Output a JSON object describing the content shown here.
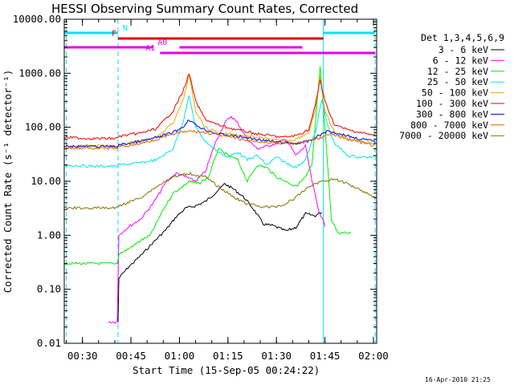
{
  "chart_data": {
    "type": "line",
    "title": "HESSI Observing Summary Count Rates, Corrected",
    "xlabel": "Start Time (15-Sep-05 00:24:22)",
    "ylabel": "Corrected Count Rate (s⁻¹ detector⁻¹)",
    "y_scale": "log",
    "ylim": [
      0.01,
      10000
    ],
    "xlim": [
      "00:24:22",
      "02:01:00"
    ],
    "y_ticks": [
      "10000.00",
      "1000.00",
      "100.00",
      "10.00",
      "1.00",
      "0.10",
      "0.01"
    ],
    "x_ticks": [
      "00:30",
      "00:45",
      "01:00",
      "01:15",
      "01:30",
      "01:45",
      "02:00"
    ],
    "footer_date": "16-Apr-2010 21:25",
    "legend_header": "Det 1,3,4,5,6,9",
    "vertical_markers": [
      {
        "time": "00:41:00",
        "style": "dashed"
      },
      {
        "time": "00:25:00",
        "style": "dashed"
      },
      {
        "time": "01:44:30",
        "style": "solid"
      },
      {
        "time": "02:00:30",
        "style": "dashed"
      }
    ],
    "flag_bars": [
      {
        "label": "N",
        "color": "#00e5ee",
        "segments": [
          [
            "00:24:30",
            "00:41:00"
          ],
          [
            "01:44:30",
            "02:00:30"
          ]
        ]
      },
      {
        "label": "F",
        "color": "#e00000",
        "segments": [
          [
            "00:41:00",
            "01:44:30"
          ]
        ]
      },
      {
        "label": "A0",
        "color": "#e800e8",
        "segments": [
          [
            "00:24:30",
            "00:52:00"
          ],
          [
            "01:00:00",
            "01:38:00"
          ]
        ]
      },
      {
        "label": "A1",
        "color": "#e800e8",
        "segments": [
          [
            "00:54:00",
            "02:00:30"
          ]
        ]
      }
    ],
    "series": [
      {
        "name": "3 - 6 keV",
        "color": "#000000",
        "points": [
          [
            "00:41:00",
            0.025
          ],
          [
            "00:41:15",
            0.16
          ],
          [
            "00:44:00",
            0.25
          ],
          [
            "00:48:00",
            0.42
          ],
          [
            "00:52:00",
            0.75
          ],
          [
            "00:56:00",
            1.3
          ],
          [
            "00:59:00",
            2.2
          ],
          [
            "01:02:00",
            3.2
          ],
          [
            "01:05:00",
            3.5
          ],
          [
            "01:08:00",
            4.2
          ],
          [
            "01:11:00",
            6.0
          ],
          [
            "01:14:00",
            9.0
          ],
          [
            "01:17:00",
            7.0
          ],
          [
            "01:20:00",
            5.0
          ],
          [
            "01:23:00",
            3.0
          ],
          [
            "01:26:00",
            1.6
          ],
          [
            "01:29:00",
            1.5
          ],
          [
            "01:33:00",
            1.2
          ],
          [
            "01:36:00",
            1.4
          ],
          [
            "01:39:00",
            2.5
          ],
          [
            "01:42:00",
            2.3
          ],
          [
            "01:44:00",
            2.7
          ]
        ]
      },
      {
        "name": "6 - 12 keV",
        "color": "#ff00ff",
        "points": [
          [
            "00:38:00",
            0.025
          ],
          [
            "00:40:45",
            0.025
          ],
          [
            "00:41:15",
            1.0
          ],
          [
            "00:44:00",
            1.4
          ],
          [
            "00:48:00",
            2.0
          ],
          [
            "00:52:00",
            4.0
          ],
          [
            "00:56:00",
            10.0
          ],
          [
            "00:59:00",
            14.0
          ],
          [
            "01:02:00",
            12.0
          ],
          [
            "01:05:00",
            10.0
          ],
          [
            "01:08:00",
            15.0
          ],
          [
            "01:11:00",
            50.0
          ],
          [
            "01:14:00",
            120.0
          ],
          [
            "01:16:00",
            160.0
          ],
          [
            "01:18:00",
            120.0
          ],
          [
            "01:21:00",
            60.0
          ],
          [
            "01:24:00",
            40.0
          ],
          [
            "01:27:00",
            45.0
          ],
          [
            "01:30:00",
            50.0
          ],
          [
            "01:33:00",
            60.0
          ],
          [
            "01:36:00",
            30.0
          ],
          [
            "01:39:00",
            45.0
          ],
          [
            "01:41:00",
            10.0
          ],
          [
            "01:43:00",
            3.0
          ],
          [
            "01:45:00",
            1.5
          ]
        ]
      },
      {
        "name": "12 - 25 keV",
        "color": "#00ee00",
        "points": [
          [
            "00:24:22",
            0.3
          ],
          [
            "00:32:00",
            0.3
          ],
          [
            "00:40:45",
            0.3
          ],
          [
            "00:41:15",
            0.45
          ],
          [
            "00:44:00",
            0.55
          ],
          [
            "00:48:00",
            0.8
          ],
          [
            "00:51:00",
            1.0
          ],
          [
            "00:55:00",
            3.0
          ],
          [
            "00:58:00",
            6.0
          ],
          [
            "01:01:00",
            8.0
          ],
          [
            "01:03:00",
            10.0
          ],
          [
            "01:06:00",
            9.0
          ],
          [
            "01:09:00",
            12.0
          ],
          [
            "01:12:00",
            40.0
          ],
          [
            "01:15:00",
            30.0
          ],
          [
            "01:18:00",
            25.0
          ],
          [
            "01:21:00",
            10.0
          ],
          [
            "01:24:00",
            20.0
          ],
          [
            "01:27:00",
            18.0
          ],
          [
            "01:30:00",
            12.0
          ],
          [
            "01:33:00",
            10.0
          ],
          [
            "01:36:00",
            8.0
          ],
          [
            "01:39:00",
            12.0
          ],
          [
            "01:41:00",
            20.0
          ],
          [
            "01:43:30",
            1300.0
          ],
          [
            "01:45:00",
            100.0
          ],
          [
            "01:47:00",
            2.0
          ],
          [
            "01:49:00",
            1.1
          ],
          [
            "01:53:00",
            1.1
          ]
        ]
      },
      {
        "name": "25 - 50 keV",
        "color": "#00e5ee",
        "points": [
          [
            "00:24:22",
            20.0
          ],
          [
            "00:32:00",
            19.0
          ],
          [
            "00:40:45",
            19.0
          ],
          [
            "00:41:15",
            20.0
          ],
          [
            "00:48:00",
            22.0
          ],
          [
            "00:53:00",
            25.0
          ],
          [
            "00:58:00",
            40.0
          ],
          [
            "01:01:00",
            120.0
          ],
          [
            "01:03:00",
            380.0
          ],
          [
            "01:05:00",
            100.0
          ],
          [
            "01:08:00",
            55.0
          ],
          [
            "01:12:00",
            35.0
          ],
          [
            "01:15:00",
            28.0
          ],
          [
            "01:18:00",
            35.0
          ],
          [
            "01:21:00",
            25.0
          ],
          [
            "01:24:00",
            30.0
          ],
          [
            "01:27:00",
            20.0
          ],
          [
            "01:30:00",
            28.0
          ],
          [
            "01:33:00",
            22.0
          ],
          [
            "01:36:00",
            18.0
          ],
          [
            "01:39:00",
            25.0
          ],
          [
            "01:42:00",
            80.0
          ],
          [
            "01:44:00",
            320.0
          ],
          [
            "01:46:00",
            100.0
          ],
          [
            "01:48:00",
            50.0
          ],
          [
            "01:52:00",
            30.0
          ],
          [
            "01:56:00",
            28.0
          ],
          [
            "02:00:30",
            28.0
          ]
        ]
      },
      {
        "name": "50 - 100 keV",
        "color": "#e0b000",
        "points": [
          [
            "00:24:22",
            45.0
          ],
          [
            "00:32:00",
            45.0
          ],
          [
            "00:40:45",
            45.0
          ],
          [
            "00:41:15",
            48.0
          ],
          [
            "00:48:00",
            55.0
          ],
          [
            "00:53:00",
            65.0
          ],
          [
            "00:58:00",
            120.0
          ],
          [
            "01:01:00",
            300.0
          ],
          [
            "01:03:00",
            900.0
          ],
          [
            "01:05:00",
            200.0
          ],
          [
            "01:08:00",
            100.0
          ],
          [
            "01:12:00",
            80.0
          ],
          [
            "01:16:00",
            75.0
          ],
          [
            "01:20:00",
            70.0
          ],
          [
            "01:24:00",
            65.0
          ],
          [
            "01:28:00",
            60.0
          ],
          [
            "01:32:00",
            55.0
          ],
          [
            "01:36:00",
            60.0
          ],
          [
            "01:40:00",
            80.0
          ],
          [
            "01:42:00",
            200.0
          ],
          [
            "01:43:30",
            850.0
          ],
          [
            "01:45:00",
            200.0
          ],
          [
            "01:48:00",
            80.0
          ],
          [
            "01:52:00",
            60.0
          ],
          [
            "01:56:00",
            55.0
          ],
          [
            "02:00:30",
            50.0
          ]
        ]
      },
      {
        "name": "100 - 300 keV",
        "color": "#ee0000",
        "points": [
          [
            "00:24:22",
            65.0
          ],
          [
            "00:32:00",
            62.0
          ],
          [
            "00:40:45",
            62.0
          ],
          [
            "00:41:15",
            68.0
          ],
          [
            "00:48:00",
            78.0
          ],
          [
            "00:53:00",
            95.0
          ],
          [
            "00:58:00",
            200.0
          ],
          [
            "01:01:00",
            450.0
          ],
          [
            "01:03:00",
            1000.0
          ],
          [
            "01:05:00",
            300.0
          ],
          [
            "01:08:00",
            140.0
          ],
          [
            "01:12:00",
            110.0
          ],
          [
            "01:16:00",
            95.0
          ],
          [
            "01:20:00",
            85.0
          ],
          [
            "01:24:00",
            75.0
          ],
          [
            "01:28:00",
            70.0
          ],
          [
            "01:32:00",
            65.0
          ],
          [
            "01:36:00",
            70.0
          ],
          [
            "01:40:00",
            90.0
          ],
          [
            "01:42:00",
            250.0
          ],
          [
            "01:43:30",
            750.0
          ],
          [
            "01:45:00",
            300.0
          ],
          [
            "01:48:00",
            110.0
          ],
          [
            "01:52:00",
            90.0
          ],
          [
            "01:56:00",
            80.0
          ],
          [
            "02:00:30",
            70.0
          ]
        ]
      },
      {
        "name": "300 - 800 keV",
        "color": "#0000ee",
        "points": [
          [
            "00:24:22",
            45.0
          ],
          [
            "00:32:00",
            44.0
          ],
          [
            "00:40:45",
            44.0
          ],
          [
            "00:41:15",
            47.0
          ],
          [
            "00:48:00",
            55.0
          ],
          [
            "00:53:00",
            65.0
          ],
          [
            "00:58:00",
            80.0
          ],
          [
            "01:01:00",
            100.0
          ],
          [
            "01:03:00",
            140.0
          ],
          [
            "01:05:00",
            110.0
          ],
          [
            "01:08:00",
            90.0
          ],
          [
            "01:12:00",
            75.0
          ],
          [
            "01:16:00",
            70.0
          ],
          [
            "01:20:00",
            65.0
          ],
          [
            "01:24:00",
            60.0
          ],
          [
            "01:28:00",
            55.0
          ],
          [
            "01:32:00",
            52.0
          ],
          [
            "01:36:00",
            50.0
          ],
          [
            "01:40:00",
            55.0
          ],
          [
            "01:44:00",
            75.0
          ],
          [
            "01:46:00",
            85.0
          ],
          [
            "01:50:00",
            75.0
          ],
          [
            "01:55:00",
            62.0
          ],
          [
            "02:00:30",
            55.0
          ]
        ]
      },
      {
        "name": "800 - 7000 keV",
        "color": "#e86000",
        "points": [
          [
            "00:24:22",
            42.0
          ],
          [
            "00:32:00",
            41.0
          ],
          [
            "00:40:45",
            41.0
          ],
          [
            "00:41:15",
            43.0
          ],
          [
            "00:48:00",
            50.0
          ],
          [
            "00:53:00",
            60.0
          ],
          [
            "00:58:00",
            75.0
          ],
          [
            "01:03:00",
            85.0
          ],
          [
            "01:08:00",
            80.0
          ],
          [
            "01:12:00",
            72.0
          ],
          [
            "01:16:00",
            65.0
          ],
          [
            "01:20:00",
            58.0
          ],
          [
            "01:24:00",
            55.0
          ],
          [
            "01:28:00",
            52.0
          ],
          [
            "01:32:00",
            50.0
          ],
          [
            "01:36:00",
            50.0
          ],
          [
            "01:40:00",
            55.0
          ],
          [
            "01:44:00",
            65.0
          ],
          [
            "01:47:00",
            75.0
          ],
          [
            "01:50:00",
            65.0
          ],
          [
            "01:55:00",
            55.0
          ],
          [
            "02:00:30",
            45.0
          ]
        ]
      },
      {
        "name": "7000 - 20000 keV",
        "color": "#807000",
        "points": [
          [
            "00:24:22",
            3.2
          ],
          [
            "00:32:00",
            3.2
          ],
          [
            "00:40:45",
            3.2
          ],
          [
            "00:41:15",
            3.5
          ],
          [
            "00:48:00",
            5.0
          ],
          [
            "00:53:00",
            8.0
          ],
          [
            "00:58:00",
            12.0
          ],
          [
            "01:03:00",
            14.0
          ],
          [
            "01:08:00",
            12.0
          ],
          [
            "01:12:00",
            8.0
          ],
          [
            "01:16:00",
            5.5
          ],
          [
            "01:20:00",
            4.0
          ],
          [
            "01:24:00",
            3.5
          ],
          [
            "01:28:00",
            3.3
          ],
          [
            "01:32:00",
            3.6
          ],
          [
            "01:36:00",
            5.0
          ],
          [
            "01:40:00",
            8.0
          ],
          [
            "01:44:00",
            10.0
          ],
          [
            "01:48:00",
            11.0
          ],
          [
            "01:52:00",
            9.0
          ],
          [
            "01:56:00",
            7.0
          ],
          [
            "02:00:30",
            5.0
          ]
        ]
      }
    ]
  }
}
